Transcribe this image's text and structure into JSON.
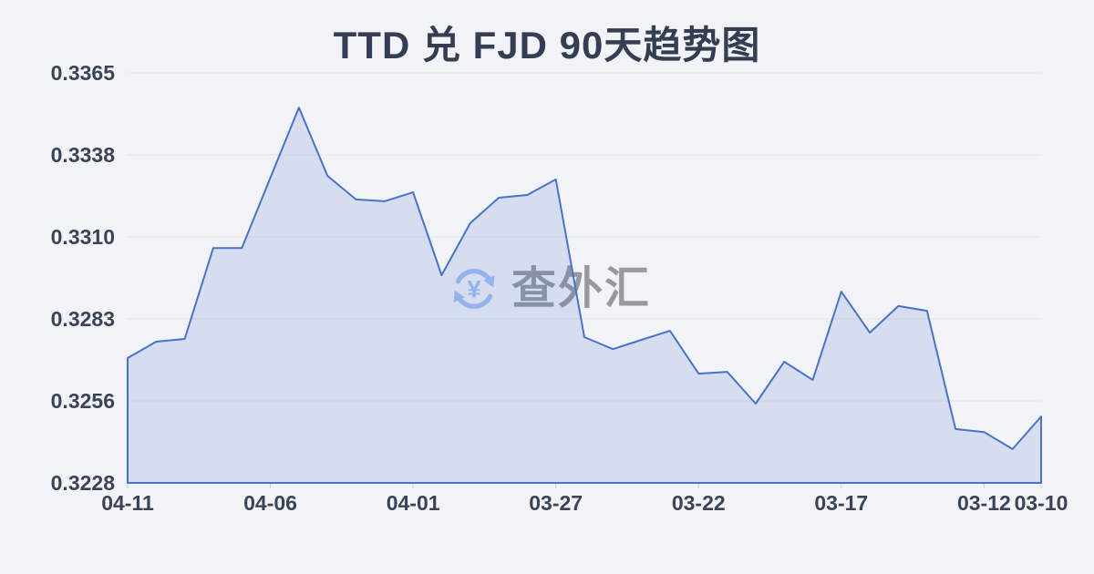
{
  "header": {
    "title": "TTD 兑 FJD 90天趋势图"
  },
  "watermark": {
    "text": "查外汇",
    "icon": "currency-refresh-icon"
  },
  "colors": {
    "background": "#f2f3f6",
    "line": "#4673cf",
    "area_fill": "rgba(70,115,207,0.17)",
    "grid": "#e4e6eb",
    "tick": "#c8ccd3",
    "title_text": "#343e52",
    "axis_text": "#3a4457",
    "watermark_text": "#97999d",
    "watermark_icon": "#a3c2f1"
  },
  "chart_data": {
    "type": "area",
    "title": "TTD 兑 FJD 90天趋势图",
    "x": [
      "04-11",
      "04-10",
      "04-09",
      "04-08",
      "04-07",
      "04-06",
      "04-05",
      "04-04",
      "04-03",
      "04-02",
      "04-01",
      "03-31",
      "03-30",
      "03-29",
      "03-28",
      "03-27",
      "03-26",
      "03-25",
      "03-24",
      "03-23",
      "03-22",
      "03-21",
      "03-20",
      "03-19",
      "03-18",
      "03-17",
      "03-16",
      "03-15",
      "03-14",
      "03-13",
      "03-12",
      "03-11",
      "03-10"
    ],
    "values": [
      0.32697,
      0.32752,
      0.32761,
      0.33065,
      0.33065,
      0.333,
      0.33534,
      0.33306,
      0.33227,
      0.33221,
      0.33251,
      0.32974,
      0.33148,
      0.33233,
      0.33242,
      0.33294,
      0.32767,
      0.32727,
      0.32758,
      0.32788,
      0.32645,
      0.32651,
      0.32545,
      0.32685,
      0.32624,
      0.32919,
      0.32782,
      0.32871,
      0.32855,
      0.3246,
      0.3245,
      0.32393,
      0.32502
    ],
    "x_tick_labels": [
      "04-11",
      "04-06",
      "04-01",
      "03-27",
      "03-22",
      "03-17",
      "03-12",
      "03-10"
    ],
    "x_tick_indices": [
      0,
      5,
      10,
      15,
      20,
      25,
      30,
      32
    ],
    "y_tick_labels": [
      "0.3365",
      "0.3338",
      "0.3310",
      "0.3283",
      "0.3256",
      "0.3228"
    ],
    "ylim": [
      0.3228,
      0.3365
    ],
    "grid": "horizontal",
    "legend": "none",
    "note": "time axis runs right-to-left chronologically (newest date on the left)"
  }
}
